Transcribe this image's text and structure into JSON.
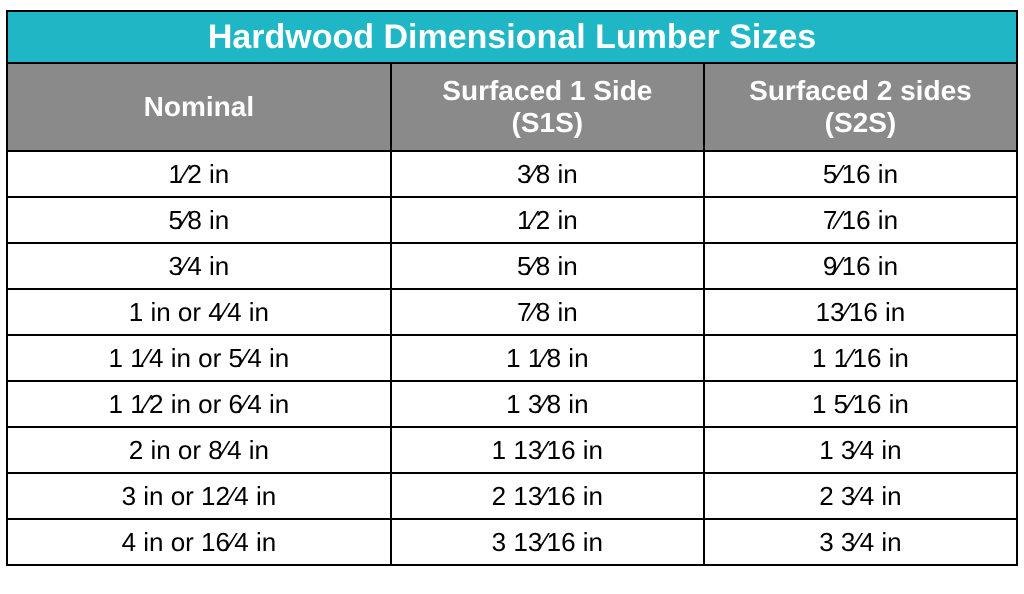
{
  "title": "Hardwood Dimensional Lumber Sizes",
  "columns": [
    {
      "label_line1": "Nominal",
      "label_line2": ""
    },
    {
      "label_line1": "Surfaced 1 Side",
      "label_line2": "(S1S)"
    },
    {
      "label_line1": "Surfaced 2 sides",
      "label_line2": "(S2S)"
    }
  ],
  "rows": [
    [
      "1⁄2 in",
      "3⁄8 in",
      "5⁄16 in"
    ],
    [
      "5⁄8 in",
      "1⁄2 in",
      "7⁄16 in"
    ],
    [
      "3⁄4 in",
      "5⁄8 in",
      "9⁄16 in"
    ],
    [
      "1 in or 4⁄4 in",
      "7⁄8 in",
      "13⁄16 in"
    ],
    [
      "1 1⁄4 in or 5⁄4 in",
      "1 1⁄8 in",
      "1 1⁄16 in"
    ],
    [
      "1 1⁄2 in or 6⁄4 in",
      "1 3⁄8 in",
      "1 5⁄16 in"
    ],
    [
      "2 in or 8⁄4 in",
      "1 13⁄16 in",
      "1 3⁄4 in"
    ],
    [
      "3 in or 12⁄4 in",
      "2 13⁄16 in",
      "2 3⁄4 in"
    ],
    [
      "4 in or 16⁄4 in",
      "3 13⁄16 in",
      "3 3⁄4 in"
    ]
  ],
  "style": {
    "title_bg": "#1fb6c6",
    "title_fg": "#ffffff",
    "header_bg": "#8a8a8a",
    "header_fg": "#ffffff",
    "cell_bg": "#ffffff",
    "cell_fg": "#000000",
    "border_color": "#000000",
    "title_fontsize": 34,
    "header_fontsize": 28,
    "cell_fontsize": 26,
    "col_widths_pct": [
      38,
      31,
      31
    ]
  }
}
